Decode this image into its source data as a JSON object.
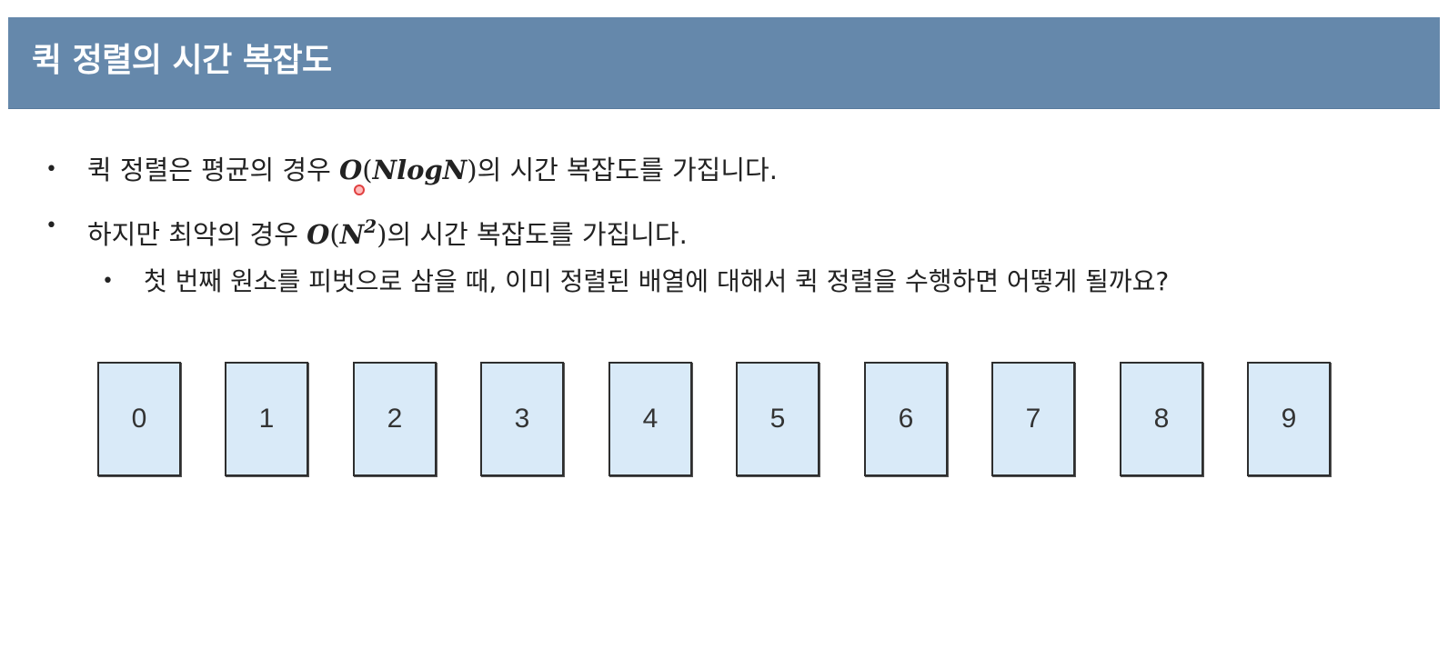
{
  "header": {
    "title": "퀵 정렬의 시간 복잡도"
  },
  "bullets": [
    {
      "bullet": "•",
      "text_before": "퀵 정렬은 평균의 경우 ",
      "math_o": "O",
      "math_open": "(",
      "math_inner": "NlogN",
      "math_close": ")",
      "text_after": "의 시간 복잡도를 가집니다."
    },
    {
      "bullet": "•",
      "text_before": "하지만 최악의 경우 ",
      "math_o": "O",
      "math_open": "(",
      "math_inner": "N",
      "math_sup": "2",
      "math_close": ")",
      "text_after": "의 시간 복잡도를 가집니다."
    },
    {
      "bullet": "•",
      "text": "첫 번째 원소를 피벗으로 삼을 때, 이미 정렬된 배열에 대해서 퀵 정렬을 수행하면 어떻게 될까요?"
    }
  ],
  "cards": [
    "0",
    "1",
    "2",
    "3",
    "4",
    "5",
    "6",
    "7",
    "8",
    "9"
  ],
  "colors": {
    "header_bg": "#6588ab",
    "card_bg": "#d9eaf8"
  }
}
